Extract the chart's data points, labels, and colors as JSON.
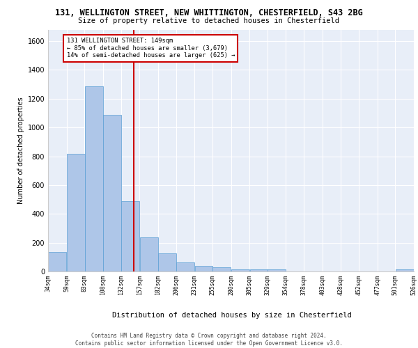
{
  "title_line1": "131, WELLINGTON STREET, NEW WHITTINGTON, CHESTERFIELD, S43 2BG",
  "title_line2": "Size of property relative to detached houses in Chesterfield",
  "xlabel": "Distribution of detached houses by size in Chesterfield",
  "ylabel": "Number of detached properties",
  "bar_color": "#aec6e8",
  "bar_edge_color": "#5a9fd4",
  "background_color": "#e8eef8",
  "grid_color": "#ffffff",
  "annotation_text": "131 WELLINGTON STREET: 149sqm\n← 85% of detached houses are smaller (3,679)\n14% of semi-detached houses are larger (625) →",
  "vline_x": 149,
  "vline_color": "#cc0000",
  "bin_edges": [
    34,
    59,
    83,
    108,
    132,
    157,
    182,
    206,
    231,
    255,
    280,
    305,
    329,
    354,
    378,
    403,
    428,
    452,
    477,
    501,
    526
  ],
  "bar_heights": [
    135,
    815,
    1285,
    1090,
    490,
    237,
    128,
    65,
    38,
    27,
    14,
    13,
    13,
    0,
    0,
    0,
    0,
    0,
    0,
    13
  ],
  "ylim": [
    0,
    1680
  ],
  "yticks": [
    0,
    200,
    400,
    600,
    800,
    1000,
    1200,
    1400,
    1600
  ],
  "footnote": "Contains HM Land Registry data © Crown copyright and database right 2024.\nContains public sector information licensed under the Open Government Licence v3.0."
}
